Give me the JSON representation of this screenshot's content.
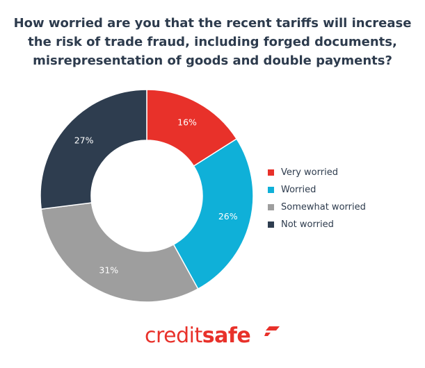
{
  "chart_data": {
    "type": "pie",
    "subtype": "donut",
    "title": "How worried are you that the recent tariffs will increase the risk of trade fraud, including forged documents, misrepresentation of goods and double payments?",
    "title_lines": [
      "How worried are you that the recent tariffs will increase",
      "the risk of trade fraud, including forged documents,",
      "misrepresentation of goods and double payments?"
    ],
    "categories": [
      "Very worried",
      "Worried",
      "Somewhat worried",
      "Not worried"
    ],
    "values": [
      16,
      26,
      31,
      27
    ],
    "labels": [
      "16%",
      "26%",
      "31%",
      "27%"
    ],
    "colors": [
      "#e8312a",
      "#0fb0d8",
      "#9e9e9e",
      "#2e3d4f"
    ],
    "legend_position": "right",
    "start_angle": "12 o'clock, clockwise"
  },
  "legend": {
    "items": [
      {
        "label": "Very worried",
        "color": "#e8312a"
      },
      {
        "label": "Worried",
        "color": "#0fb0d8"
      },
      {
        "label": "Somewhat worried",
        "color": "#9e9e9e"
      },
      {
        "label": "Not worried",
        "color": "#2e3d4f"
      }
    ]
  },
  "logo": {
    "part1": "credit",
    "part2": "safe",
    "color": "#e8312a"
  }
}
